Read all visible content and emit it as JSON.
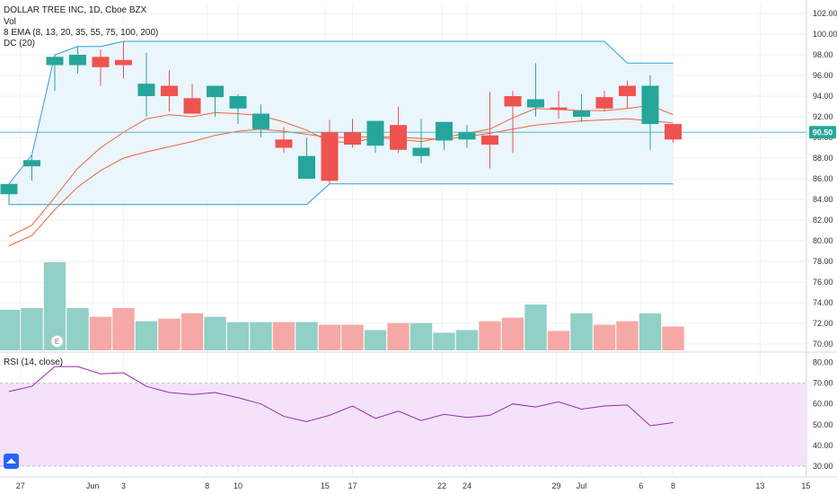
{
  "header": {
    "symbol_line": "DOLLAR TREE INC, 1D, Cboe BZX",
    "vol_label": "Vol",
    "ema_label": "8 EMA (8, 13, 20, 35, 55, 75, 100, 200)",
    "dc_label": "DC (20)",
    "rsi_label": "RSI (14, close)",
    "earnings_marker": "E"
  },
  "price_badge": "90.50",
  "colors": {
    "up": "#26a69a",
    "down": "#ef5350",
    "up_volume": "#90d0c6",
    "down_volume": "#f6a8a6",
    "channel_line": "#2f9fdf",
    "channel_fill": "#eaf5fc",
    "ema": "#f0633a",
    "rsi_line": "#9c27b0",
    "rsi_band": "#f3e2fa",
    "price_line": "#5fb8c3"
  },
  "chart_data": [
    {
      "type": "candlestick",
      "title": "DOLLAR TREE INC, 1D, Cboe BZX",
      "x": [
        "May 24",
        "May 28",
        "May 29",
        "May 30",
        "May 31",
        "Jun 3",
        "Jun 4",
        "Jun 5",
        "Jun 6",
        "Jun 7",
        "Jun 10",
        "Jun 11",
        "Jun 12",
        "Jun 13",
        "Jun 14",
        "Jun 17",
        "Jun 18",
        "Jun 19",
        "Jun 20",
        "Jun 21",
        "Jun 24",
        "Jun 25",
        "Jun 26",
        "Jun 27",
        "Jun 28",
        "Jul 1",
        "Jul 2",
        "Jul 3",
        "Jul 5",
        "Jul 8"
      ],
      "open": [
        84.5,
        87.2,
        97.0,
        97.0,
        97.8,
        97.5,
        94.0,
        95.0,
        93.8,
        93.9,
        92.8,
        90.8,
        89.8,
        86.0,
        90.5,
        90.5,
        89.2,
        91.2,
        88.2,
        89.7,
        89.8,
        90.2,
        94.0,
        92.9,
        92.9,
        92.0,
        93.9,
        95.0,
        91.3,
        91.3
      ],
      "high": [
        85.5,
        88.3,
        98.0,
        98.8,
        98.5,
        99.3,
        98.2,
        96.5,
        95.2,
        94.8,
        94.2,
        93.2,
        91.0,
        90.0,
        91.7,
        91.8,
        91.5,
        93.0,
        91.8,
        91.5,
        91.2,
        94.4,
        94.5,
        97.2,
        94.5,
        94.2,
        94.5,
        95.5,
        96.0,
        91.0
      ],
      "low": [
        83.5,
        85.8,
        94.5,
        96.2,
        95.0,
        95.7,
        92.0,
        92.5,
        92.3,
        92.0,
        91.3,
        90.0,
        88.5,
        86.0,
        85.5,
        89.0,
        88.5,
        88.5,
        87.5,
        88.8,
        89.0,
        87.0,
        88.5,
        92.0,
        91.8,
        91.5,
        92.5,
        92.8,
        88.8,
        89.5
      ],
      "close": [
        85.5,
        87.8,
        97.8,
        98.0,
        96.8,
        97.0,
        95.2,
        94.0,
        92.3,
        95.0,
        94.0,
        92.3,
        89.0,
        88.2,
        85.8,
        89.3,
        91.6,
        88.8,
        89.0,
        91.5,
        90.5,
        89.3,
        93.0,
        93.7,
        92.7,
        92.6,
        92.8,
        94.0,
        95.0,
        89.8
      ],
      "ylim": [
        69.0,
        103.5
      ],
      "y_ticks": [
        70,
        72,
        74,
        76,
        78,
        80,
        82,
        84,
        86,
        88,
        90,
        92,
        94,
        96,
        98,
        100,
        102
      ],
      "volume_ratio": [
        0.46,
        0.48,
        1.0,
        0.48,
        0.38,
        0.48,
        0.33,
        0.36,
        0.42,
        0.38,
        0.32,
        0.32,
        0.32,
        0.32,
        0.29,
        0.29,
        0.23,
        0.31,
        0.31,
        0.2,
        0.23,
        0.33,
        0.37,
        0.52,
        0.22,
        0.42,
        0.29,
        0.33,
        0.42,
        0.27
      ],
      "ema_fast": [
        79.5,
        80.5,
        83.0,
        85.2,
        86.8,
        88.0,
        88.6,
        89.1,
        89.6,
        90.2,
        90.6,
        90.8,
        90.6,
        90.3,
        90.0,
        90.0,
        90.1,
        90.0,
        89.9,
        89.8,
        90.1,
        90.4,
        90.8,
        91.2,
        91.4,
        91.6,
        91.7,
        91.8,
        91.6,
        91.4
      ],
      "ema_slow": [
        80.4,
        81.5,
        84.2,
        87.0,
        89.0,
        90.5,
        91.8,
        92.2,
        92.0,
        92.4,
        92.3,
        92.1,
        91.5,
        90.7,
        89.6,
        89.5,
        90.0,
        89.8,
        89.6,
        90.0,
        90.4,
        90.8,
        91.9,
        92.8,
        92.7,
        92.6,
        92.6,
        92.8,
        93.1,
        92.2
      ],
      "dc_upper": [
        85.5,
        88.3,
        98.0,
        98.8,
        98.8,
        99.3,
        99.3,
        99.3,
        99.3,
        99.3,
        99.3,
        99.3,
        99.3,
        99.3,
        99.3,
        99.3,
        99.3,
        99.3,
        99.3,
        99.3,
        99.3,
        99.3,
        99.3,
        99.3,
        99.3,
        99.3,
        99.3,
        97.2,
        97.2,
        97.2
      ],
      "dc_lower": [
        83.5,
        83.5,
        83.5,
        83.5,
        83.5,
        83.5,
        83.5,
        83.5,
        83.5,
        83.5,
        83.5,
        83.5,
        83.5,
        83.5,
        85.5,
        85.5,
        85.5,
        85.5,
        85.5,
        85.5,
        85.5,
        85.5,
        85.5,
        85.5,
        85.5,
        85.5,
        85.5,
        85.5,
        85.5,
        85.5
      ],
      "current_price": 90.5
    },
    {
      "type": "line",
      "title": "RSI (14, close)",
      "x": [
        "May 24",
        "May 28",
        "May 29",
        "May 30",
        "May 31",
        "Jun 3",
        "Jun 4",
        "Jun 5",
        "Jun 6",
        "Jun 7",
        "Jun 10",
        "Jun 11",
        "Jun 12",
        "Jun 13",
        "Jun 14",
        "Jun 17",
        "Jun 18",
        "Jun 19",
        "Jun 20",
        "Jun 21",
        "Jun 24",
        "Jun 25",
        "Jun 26",
        "Jun 27",
        "Jun 28",
        "Jul 1",
        "Jul 2",
        "Jul 3",
        "Jul 5",
        "Jul 8"
      ],
      "values": [
        66,
        68.5,
        78,
        78,
        74.5,
        75,
        68.5,
        65.5,
        64.5,
        65.5,
        63,
        60,
        54,
        51.5,
        54.5,
        59,
        53,
        56.5,
        52,
        55,
        53.5,
        54.5,
        60,
        58.5,
        61,
        57.5,
        59,
        59.5,
        49.5,
        51
      ],
      "ylim": [
        27,
        83
      ],
      "y_ticks": [
        30,
        40,
        50,
        60,
        70,
        80
      ],
      "band": [
        30,
        70
      ]
    }
  ],
  "x_axis": {
    "ticks": [
      {
        "label": "27",
        "date": "May 27"
      },
      {
        "label": "Jun",
        "date": "Jun 1"
      },
      {
        "label": "3",
        "date": "Jun 3"
      },
      {
        "label": "8",
        "date": "Jun 8"
      },
      {
        "label": "10",
        "date": "Jun 10"
      },
      {
        "label": "15",
        "date": "Jun 15"
      },
      {
        "label": "17",
        "date": "Jun 17"
      },
      {
        "label": "22",
        "date": "Jun 22"
      },
      {
        "label": "24",
        "date": "Jun 24"
      },
      {
        "label": "29",
        "date": "Jun 29"
      },
      {
        "label": "Jul",
        "date": "Jul 1"
      },
      {
        "label": "6",
        "date": "Jul 6"
      },
      {
        "label": "8",
        "date": "Jul 8"
      },
      {
        "label": "13",
        "date": "Jul 13"
      },
      {
        "label": "15",
        "date": "Jul 15"
      }
    ]
  }
}
